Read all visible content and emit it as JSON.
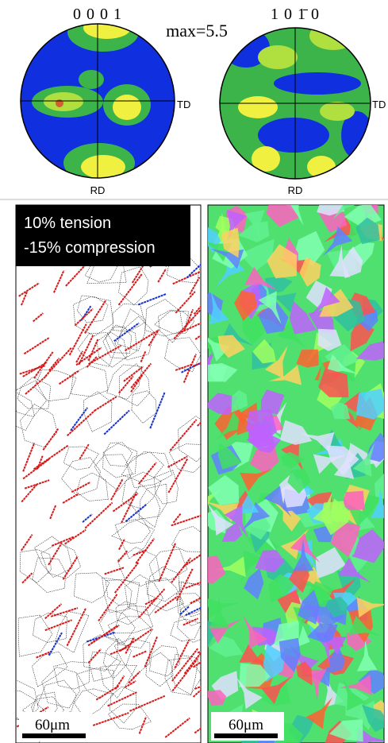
{
  "pole_figures": [
    {
      "label": "0 0 0 1",
      "td": "TD",
      "rd": "RD"
    },
    {
      "label": "1 0 1̄ 0",
      "td": "TD",
      "rd": "RD"
    }
  ],
  "max_label": "max=5.5",
  "maps": [
    {
      "caption_lines": [
        "10% tension",
        "-15% compression"
      ],
      "scale_bar": "60μm"
    },
    {
      "scale_bar": "60μm"
    }
  ]
}
